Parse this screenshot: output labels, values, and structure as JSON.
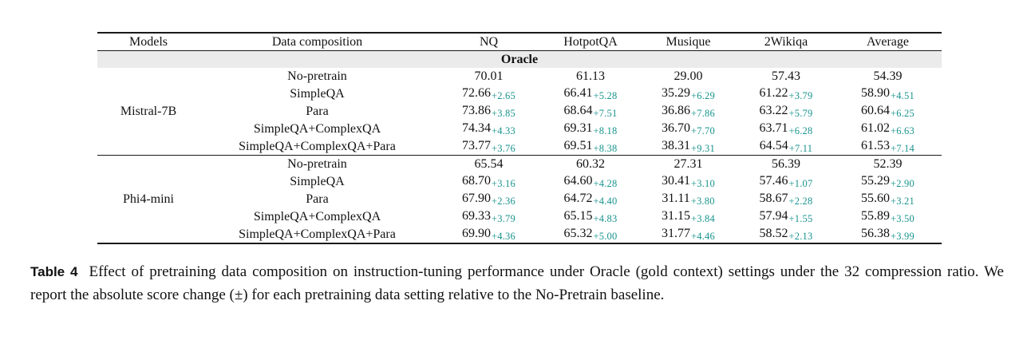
{
  "accent_color": "#18948e",
  "section_bg_color": "#ebebeb",
  "table": {
    "columns": [
      "Models",
      "Data composition",
      "NQ",
      "HotpotQA",
      "Musique",
      "2Wikiqa",
      "Average"
    ],
    "section_label": "Oracle",
    "groups": [
      {
        "model": "Mistral-7B",
        "rows": [
          {
            "composition": "No-pretrain",
            "scores": [
              {
                "v": "70.01"
              },
              {
                "v": "61.13"
              },
              {
                "v": "29.00"
              },
              {
                "v": "57.43"
              },
              {
                "v": "54.39"
              }
            ]
          },
          {
            "composition": "SimpleQA",
            "scores": [
              {
                "v": "72.66",
                "d": "+2.65"
              },
              {
                "v": "66.41",
                "d": "+5.28"
              },
              {
                "v": "35.29",
                "d": "+6.29"
              },
              {
                "v": "61.22",
                "d": "+3.79"
              },
              {
                "v": "58.90",
                "d": "+4.51"
              }
            ]
          },
          {
            "composition": "Para",
            "scores": [
              {
                "v": "73.86",
                "d": "+3.85"
              },
              {
                "v": "68.64",
                "d": "+7.51"
              },
              {
                "v": "36.86",
                "d": "+7.86"
              },
              {
                "v": "63.22",
                "d": "+5.79"
              },
              {
                "v": "60.64",
                "d": "+6.25"
              }
            ]
          },
          {
            "composition": "SimpleQA+ComplexQA",
            "scores": [
              {
                "v": "74.34",
                "d": "+4.33"
              },
              {
                "v": "69.31",
                "d": "+8.18"
              },
              {
                "v": "36.70",
                "d": "+7.70"
              },
              {
                "v": "63.71",
                "d": "+6.28"
              },
              {
                "v": "61.02",
                "d": "+6.63"
              }
            ]
          },
          {
            "composition": "SimpleQA+ComplexQA+Para",
            "scores": [
              {
                "v": "73.77",
                "d": "+3.76"
              },
              {
                "v": "69.51",
                "d": "+8.38"
              },
              {
                "v": "38.31",
                "d": "+9.31"
              },
              {
                "v": "64.54",
                "d": "+7.11"
              },
              {
                "v": "61.53",
                "d": "+7.14"
              }
            ]
          }
        ]
      },
      {
        "model": "Phi4-mini",
        "rows": [
          {
            "composition": "No-pretrain",
            "scores": [
              {
                "v": "65.54"
              },
              {
                "v": "60.32"
              },
              {
                "v": "27.31"
              },
              {
                "v": "56.39"
              },
              {
                "v": "52.39"
              }
            ]
          },
          {
            "composition": "SimpleQA",
            "scores": [
              {
                "v": "68.70",
                "d": "+3.16"
              },
              {
                "v": "64.60",
                "d": "+4.28"
              },
              {
                "v": "30.41",
                "d": "+3.10"
              },
              {
                "v": "57.46",
                "d": "+1.07"
              },
              {
                "v": "55.29",
                "d": "+2.90"
              }
            ]
          },
          {
            "composition": "Para",
            "scores": [
              {
                "v": "67.90",
                "d": "+2.36"
              },
              {
                "v": "64.72",
                "d": "+4.40"
              },
              {
                "v": "31.11",
                "d": "+3.80"
              },
              {
                "v": "58.67",
                "d": "+2.28"
              },
              {
                "v": "55.60",
                "d": "+3.21"
              }
            ]
          },
          {
            "composition": "SimpleQA+ComplexQA",
            "scores": [
              {
                "v": "69.33",
                "d": "+3.79"
              },
              {
                "v": "65.15",
                "d": "+4.83"
              },
              {
                "v": "31.15",
                "d": "+3.84"
              },
              {
                "v": "57.94",
                "d": "+1.55"
              },
              {
                "v": "55.89",
                "d": "+3.50"
              }
            ]
          },
          {
            "composition": "SimpleQA+ComplexQA+Para",
            "scores": [
              {
                "v": "69.90",
                "d": "+4.36"
              },
              {
                "v": "65.32",
                "d": "+5.00"
              },
              {
                "v": "31.77",
                "d": "+4.46"
              },
              {
                "v": "58.52",
                "d": "+2.13"
              },
              {
                "v": "56.38",
                "d": "+3.99"
              }
            ]
          }
        ]
      }
    ]
  },
  "caption": {
    "label": "Table 4",
    "text": "Effect of pretraining data composition on instruction-tuning performance under Oracle (gold context) settings under the 32 compression ratio. We report the absolute score change (±) for each pretraining data setting relative to the No-Pretrain baseline."
  }
}
